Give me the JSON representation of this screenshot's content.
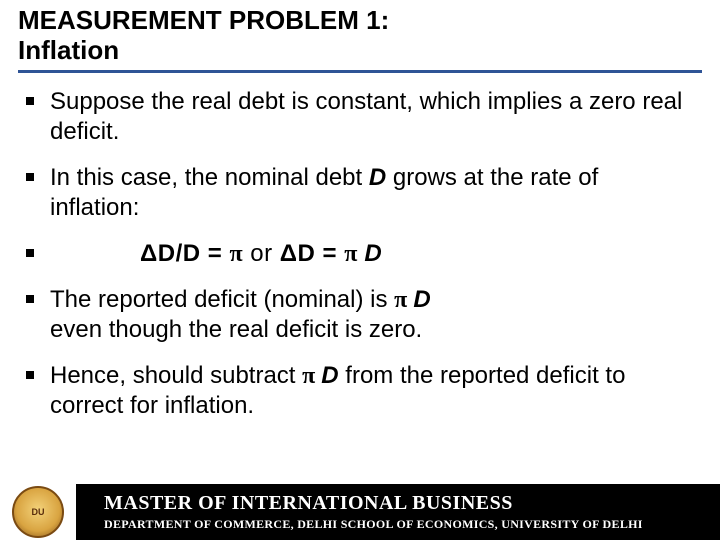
{
  "colors": {
    "underline": "#2f5496",
    "footer_bg": "#000000",
    "footer_fg": "#ffffff",
    "crest_gold": "#d9a441"
  },
  "title": {
    "line1": "MEASUREMENT PROBLEM 1:",
    "line2": "Inflation"
  },
  "bullets": {
    "b1": "Suppose the real debt is constant, which implies a zero real deficit.",
    "b2_a": "In this case, the nominal debt ",
    "b2_b": "D",
    "b2_c": "  grows at the rate of inflation:",
    "eq_lhs1": "ΔD/D  =  ",
    "eq_pi1": "π",
    "eq_or": "     or     ",
    "eq_lhs2": "ΔD  =  ",
    "eq_pi2": "π ",
    "eq_D2": "D",
    "b4_a": "The reported deficit (nominal) is ",
    "b4_pi": " π ",
    "b4_D": "D",
    "b4_b": " even though the real deficit is zero.",
    "b5_a": "Hence, should subtract ",
    "b5_pi": " π ",
    "b5_D": "D ",
    "b5_b": " from the reported deficit to correct for inflation."
  },
  "footer": {
    "line1": "MASTER OF INTERNATIONAL BUSINESS",
    "line2": "DEPARTMENT OF COMMERCE, DELHI SCHOOL OF ECONOMICS, UNIVERSITY OF DELHI",
    "crest_label": "DU"
  }
}
